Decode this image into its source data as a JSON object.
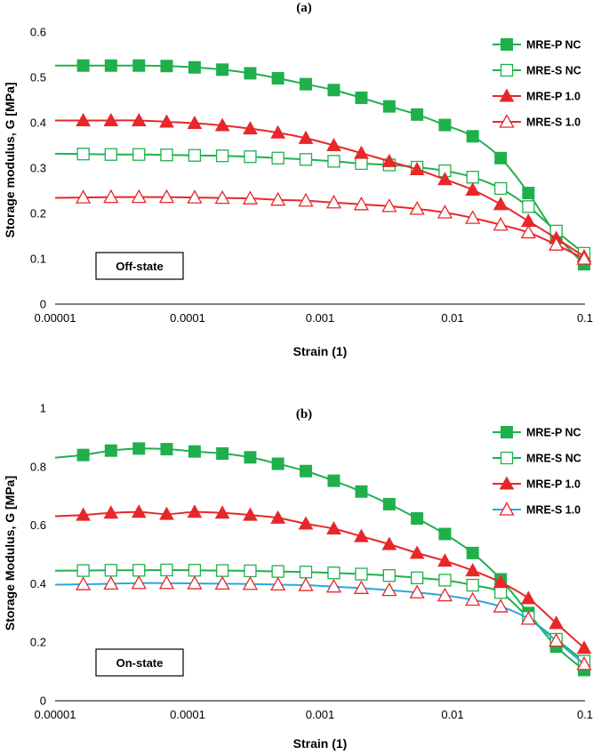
{
  "chart_data": [
    {
      "panel_label": "(a)",
      "type": "line",
      "xlabel": "Strain (1)",
      "ylabel": "Storage modulus, G [MPa]",
      "x_scale": "log",
      "xlim": [
        1e-05,
        0.1
      ],
      "ylim": [
        0,
        0.6
      ],
      "x_ticks": [
        "0.00001",
        "0.0001",
        "0.001",
        "0.01",
        "0.1"
      ],
      "y_ticks": [
        "0",
        "0.1",
        "0.2",
        "0.3",
        "0.4",
        "0.5",
        "0.6"
      ],
      "legend_position": "top-right",
      "state_label": "Off-state",
      "x": [
        1.63e-05,
        2.64e-05,
        4.29e-05,
        6.95e-05,
        0.000113,
        0.000183,
        0.000297,
        0.000481,
        0.000781,
        0.00127,
        0.00205,
        0.00333,
        0.0054,
        0.00876,
        0.0142,
        0.0231,
        0.0374,
        0.0607,
        0.0985
      ],
      "series": [
        {
          "name": "MRE-P NC",
          "color": "#1fb04c",
          "marker": "square-filled",
          "values": [
            0.526,
            0.526,
            0.526,
            0.525,
            0.522,
            0.517,
            0.509,
            0.498,
            0.485,
            0.472,
            0.455,
            0.436,
            0.418,
            0.395,
            0.37,
            0.322,
            0.245,
            0.153,
            0.088
          ]
        },
        {
          "name": "MRE-S NC",
          "color": "#1fb04c",
          "marker": "square-open",
          "values": [
            0.331,
            0.33,
            0.33,
            0.329,
            0.328,
            0.327,
            0.325,
            0.322,
            0.319,
            0.315,
            0.31,
            0.307,
            0.302,
            0.294,
            0.28,
            0.255,
            0.215,
            0.161,
            0.112
          ]
        },
        {
          "name": "MRE-P 1.0",
          "color": "#e8272a",
          "marker": "triangle-filled",
          "values": [
            0.405,
            0.405,
            0.405,
            0.402,
            0.399,
            0.394,
            0.387,
            0.378,
            0.366,
            0.35,
            0.333,
            0.315,
            0.297,
            0.275,
            0.252,
            0.22,
            0.183,
            0.145,
            0.105
          ]
        },
        {
          "name": "MRE-S 1.0",
          "color": "#e8272a",
          "marker": "triangle-open",
          "values": [
            0.235,
            0.236,
            0.236,
            0.236,
            0.235,
            0.234,
            0.233,
            0.23,
            0.228,
            0.224,
            0.22,
            0.216,
            0.21,
            0.202,
            0.19,
            0.175,
            0.158,
            0.131,
            0.1
          ]
        }
      ]
    },
    {
      "panel_label": "(b)",
      "type": "line",
      "xlabel": "Strain (1)",
      "ylabel": "Storage Modulus, G [MPa]",
      "x_scale": "log",
      "xlim": [
        1e-05,
        0.1
      ],
      "ylim": [
        0,
        1
      ],
      "x_ticks": [
        "0.00001",
        "0.0001",
        "0.001",
        "0.01",
        "0.1"
      ],
      "y_ticks": [
        "0",
        "0.2",
        "0.4",
        "0.6",
        "0.8",
        "1"
      ],
      "legend_position": "top-right",
      "state_label": "On-state",
      "x": [
        1.63e-05,
        2.64e-05,
        4.29e-05,
        6.95e-05,
        0.000113,
        0.000183,
        0.000297,
        0.000481,
        0.000781,
        0.00127,
        0.00205,
        0.00333,
        0.0054,
        0.00876,
        0.0142,
        0.0231,
        0.0374,
        0.0607,
        0.0985
      ],
      "series": [
        {
          "name": "MRE-P NC",
          "color": "#1fb04c",
          "marker": "square-filled",
          "values": [
            0.84,
            0.855,
            0.862,
            0.86,
            0.852,
            0.845,
            0.832,
            0.81,
            0.785,
            0.752,
            0.715,
            0.672,
            0.623,
            0.57,
            0.505,
            0.415,
            0.3,
            0.185,
            0.105
          ]
        },
        {
          "name": "MRE-S NC",
          "color": "#1fb04c",
          "marker": "square-open",
          "values": [
            0.445,
            0.446,
            0.446,
            0.447,
            0.446,
            0.445,
            0.444,
            0.442,
            0.44,
            0.437,
            0.433,
            0.428,
            0.42,
            0.412,
            0.395,
            0.37,
            0.285,
            0.21,
            0.135
          ]
        },
        {
          "name": "MRE-P 1.0",
          "color": "#e8272a",
          "marker": "triangle-filled",
          "values": [
            0.635,
            0.642,
            0.645,
            0.638,
            0.645,
            0.642,
            0.635,
            0.625,
            0.605,
            0.588,
            0.562,
            0.535,
            0.505,
            0.478,
            0.445,
            0.405,
            0.35,
            0.265,
            0.18
          ]
        },
        {
          "name": "MRE-S 1.0",
          "color": "#e8272a",
          "line_color": "#29a8e0",
          "marker": "triangle-open",
          "values": [
            0.398,
            0.4,
            0.402,
            0.402,
            0.401,
            0.4,
            0.399,
            0.397,
            0.395,
            0.39,
            0.385,
            0.378,
            0.37,
            0.36,
            0.345,
            0.322,
            0.28,
            0.205,
            0.125
          ]
        }
      ]
    }
  ]
}
